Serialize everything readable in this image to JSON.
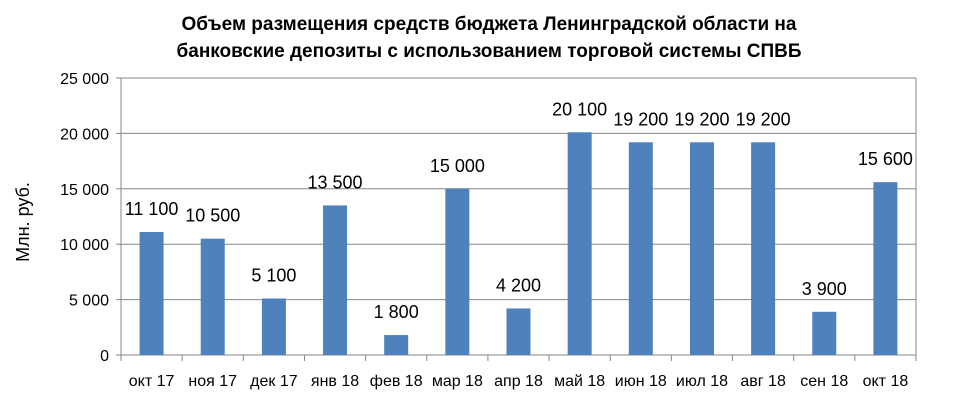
{
  "chart_data": {
    "type": "bar",
    "title_lines": [
      "Объем размещения средств бюджета Ленинградской области на",
      "банковские депозиты с  использованием торговой системы СПВБ"
    ],
    "xlabel": "",
    "ylabel": "Млн. руб.",
    "ylim": [
      0,
      25000
    ],
    "yticks": [
      0,
      5000,
      10000,
      15000,
      20000,
      25000
    ],
    "ytick_labels": [
      "0",
      "5 000",
      "10 000",
      "15 000",
      "20 000",
      "25 000"
    ],
    "grid": "horizontal",
    "legend": "none",
    "categories": [
      "окт 17",
      "ноя 17",
      "дек 17",
      "янв 18",
      "фев 18",
      "мар 18",
      "апр 18",
      "май 18",
      "июн 18",
      "июл 18",
      "авг 18",
      "сен 18",
      "окт 18"
    ],
    "values": [
      11100,
      10500,
      5100,
      13500,
      1800,
      15000,
      4200,
      20100,
      19200,
      19200,
      19200,
      3900,
      15600
    ],
    "value_labels": [
      "11 100",
      "10 500",
      "5 100",
      "13 500",
      "1 800",
      "15 000",
      "4 200",
      "20 100",
      "19 200",
      "19 200",
      "19 200",
      "3 900",
      "15 600"
    ],
    "bar_color": "#4F81BD",
    "gridline_color": "#868686"
  }
}
